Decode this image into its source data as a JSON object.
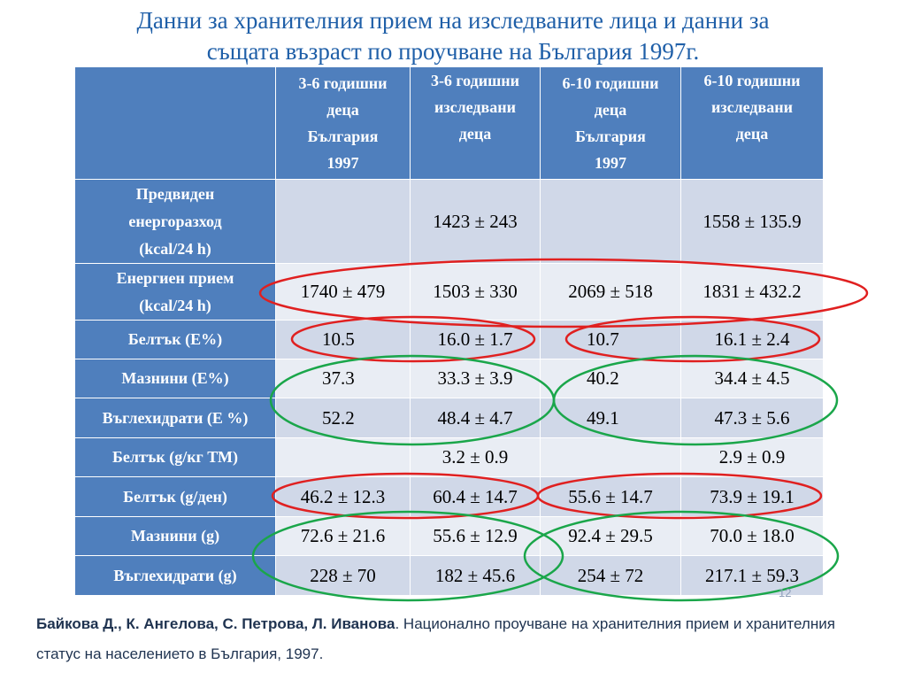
{
  "title": {
    "line1": "Данни за хранителния прием на изследваните лица  и данни за",
    "line2": "същата възраст по проучване на България 1997г."
  },
  "table": {
    "headers": [
      [
        "3-6 годишни",
        "деца",
        "България",
        "1997"
      ],
      [
        "3-6 годишни",
        "изследвани",
        "деца"
      ],
      [
        "6-10 годишни",
        "деца",
        "България",
        "1997"
      ],
      [
        "6-10 годишни",
        "изследвани",
        "деца"
      ]
    ],
    "rows": [
      {
        "label": [
          "Предвиден",
          "енергоразход",
          "(kcal/24 h)"
        ],
        "values": [
          "",
          "1423 ± 243",
          "",
          "1558 ± 135.9"
        ]
      },
      {
        "label": [
          "Енергиен прием",
          "(kcal/24 h)"
        ],
        "values": [
          "1740 ± 479",
          "1503 ± 330",
          "2069 ± 518",
          "1831 ± 432.2"
        ]
      },
      {
        "label": [
          "Белтък (Е%)"
        ],
        "values": [
          "10.5",
          "16.0 ± 1.7",
          "10.7",
          "16.1 ± 2.4"
        ]
      },
      {
        "label": [
          "Мазнини (Е%)"
        ],
        "values": [
          "37.3",
          "33.3 ± 3.9",
          "40.2",
          "34.4 ± 4.5"
        ]
      },
      {
        "label": [
          "Въглехидрати (Е %)"
        ],
        "values": [
          "52.2",
          "48.4 ± 4.7",
          "49.1",
          "47.3 ± 5.6"
        ]
      },
      {
        "label": [
          "Белтък (g/кг ТМ)"
        ],
        "values": [
          "",
          "3.2 ± 0.9",
          "",
          "2.9 ± 0.9"
        ]
      },
      {
        "label": [
          "Белтък (g/ден)"
        ],
        "values": [
          "46.2 ± 12.3",
          "60.4 ± 14.7",
          "55.6 ± 14.7",
          "73.9 ± 19.1"
        ]
      },
      {
        "label": [
          "Мазнини (g)"
        ],
        "values": [
          "72.6 ± 21.6",
          "55.6 ± 12.9",
          "92.4 ± 29.5",
          "70.0 ± 18.0"
        ]
      },
      {
        "label": [
          "Въглехидрати (g)"
        ],
        "values": [
          "228 ± 70",
          "182 ± 45.6",
          "254 ± 72",
          "217.1 ± 59.3"
        ]
      }
    ]
  },
  "annotations": {
    "red_color": "#e02020",
    "green_color": "#1aa64a"
  },
  "page_number": "12",
  "reference": {
    "authors": "Байкова Д., К. Ангелова, С. Петрова, Л. Иванова",
    "text": ". Национално проучване на хранителния прием и хранителния статус на населението в България, 1997."
  }
}
